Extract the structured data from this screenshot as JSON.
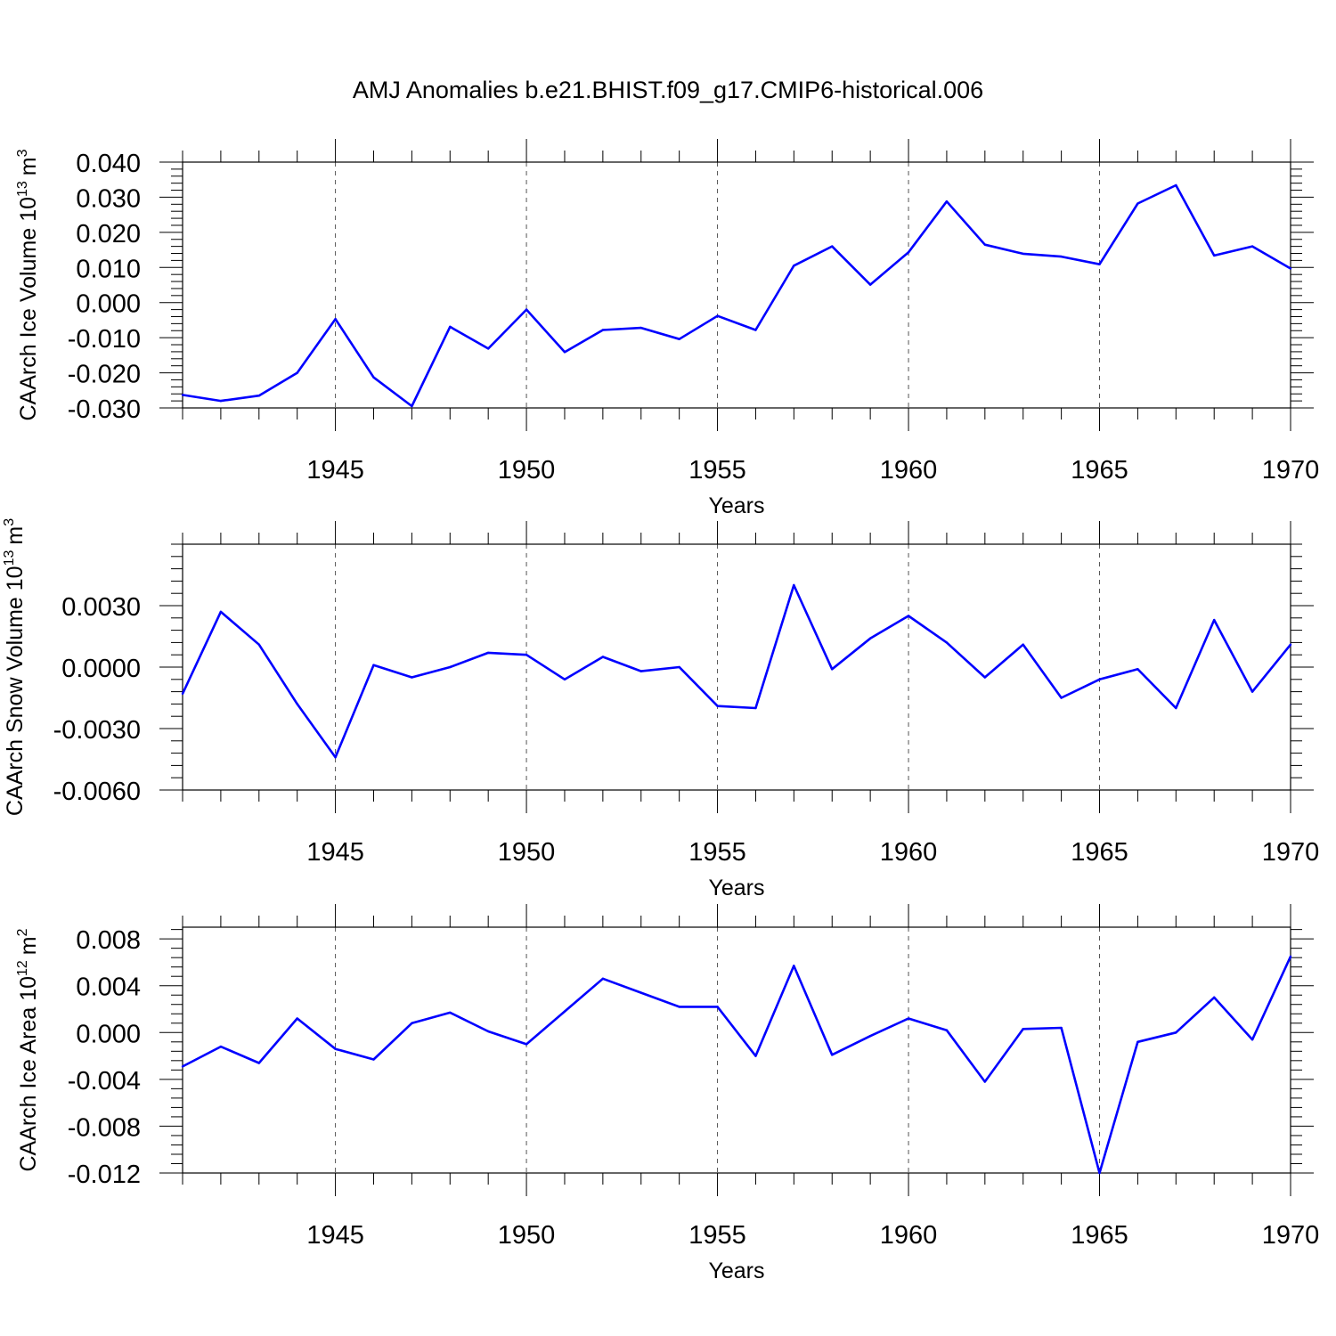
{
  "title": "AMJ Anomalies b.e21.BHIST.f09_g17.CMIP6-historical.006",
  "colors": {
    "line": "#0000ff",
    "axis": "#000000",
    "grid": "#555555",
    "background": "#ffffff"
  },
  "chart_data": [
    {
      "type": "line",
      "ylabel_main": "CAArch Ice Volume 10",
      "ylabel_exp": "13",
      "ylabel_unit": "m",
      "ylabel_unit_exp": "3",
      "xlabel": "Years",
      "xlim": [
        1941,
        1970
      ],
      "ylim": [
        -0.03,
        0.04
      ],
      "yticks": [
        -0.03,
        -0.02,
        -0.01,
        0.0,
        0.01,
        0.02,
        0.03,
        0.04
      ],
      "ytick_labels": [
        "-0.030",
        "-0.020",
        "-0.010",
        "0.000",
        "0.010",
        "0.020",
        "0.030",
        "0.040"
      ],
      "xticks": [
        1945,
        1950,
        1955,
        1960,
        1965,
        1970
      ],
      "xtick_labels": [
        "1945",
        "1950",
        "1955",
        "1960",
        "1965",
        "1970"
      ],
      "x": [
        1941,
        1942,
        1943,
        1944,
        1945,
        1946,
        1947,
        1948,
        1949,
        1950,
        1951,
        1952,
        1953,
        1954,
        1955,
        1956,
        1957,
        1958,
        1959,
        1960,
        1961,
        1962,
        1963,
        1964,
        1965,
        1966,
        1967,
        1968,
        1969,
        1970
      ],
      "values": [
        -0.0263,
        -0.028,
        -0.0265,
        -0.02,
        -0.0047,
        -0.0213,
        -0.0295,
        -0.0069,
        -0.0131,
        -0.002,
        -0.0141,
        -0.0078,
        -0.0072,
        -0.0104,
        -0.0038,
        -0.0078,
        0.0105,
        0.016,
        0.0051,
        0.0143,
        0.0288,
        0.0165,
        0.0139,
        0.0131,
        0.0109,
        0.0282,
        0.0334,
        0.0134,
        0.016,
        0.0097
      ]
    },
    {
      "type": "line",
      "ylabel_main": "CAArch Snow Volume 10",
      "ylabel_exp": "13",
      "ylabel_unit": "m",
      "ylabel_unit_exp": "3",
      "xlabel": "Years",
      "xlim": [
        1941,
        1970
      ],
      "ylim": [
        -0.006,
        0.006
      ],
      "yticks": [
        -0.006,
        -0.003,
        0.0,
        0.003
      ],
      "ytick_labels": [
        "-0.0060",
        "-0.0030",
        "0.0000",
        "0.0030"
      ],
      "xticks": [
        1945,
        1950,
        1955,
        1960,
        1965,
        1970
      ],
      "xtick_labels": [
        "1945",
        "1950",
        "1955",
        "1960",
        "1965",
        "1970"
      ],
      "x": [
        1941,
        1942,
        1943,
        1944,
        1945,
        1946,
        1947,
        1948,
        1949,
        1950,
        1951,
        1952,
        1953,
        1954,
        1955,
        1956,
        1957,
        1958,
        1959,
        1960,
        1961,
        1962,
        1963,
        1964,
        1965,
        1966,
        1967,
        1968,
        1969,
        1970
      ],
      "values": [
        -0.0013,
        0.0027,
        0.0011,
        -0.0018,
        -0.0044,
        0.0001,
        -0.0005,
        -0.0,
        0.0007,
        0.0006,
        -0.0006,
        0.0005,
        -0.0002,
        -0.0,
        -0.0019,
        -0.002,
        0.004,
        -0.0001,
        0.0014,
        0.0025,
        0.0012,
        -0.0005,
        0.0011,
        -0.0015,
        -0.0006,
        -0.0001,
        -0.002,
        0.0023,
        -0.0012,
        0.0011
      ]
    },
    {
      "type": "line",
      "ylabel_main": "CAArch Ice Area 10",
      "ylabel_exp": "12",
      "ylabel_unit": "m",
      "ylabel_unit_exp": "2",
      "xlabel": "Years",
      "xlim": [
        1941,
        1970
      ],
      "ylim": [
        -0.012,
        0.009
      ],
      "yticks": [
        -0.012,
        -0.008,
        -0.004,
        0.0,
        0.004,
        0.008
      ],
      "ytick_labels": [
        "-0.012",
        "-0.008",
        "-0.004",
        "0.000",
        "0.004",
        "0.008"
      ],
      "xticks": [
        1945,
        1950,
        1955,
        1960,
        1965,
        1970
      ],
      "xtick_labels": [
        "1945",
        "1950",
        "1955",
        "1960",
        "1965",
        "1970"
      ],
      "x": [
        1941,
        1942,
        1943,
        1944,
        1945,
        1946,
        1947,
        1948,
        1949,
        1950,
        1951,
        1952,
        1953,
        1954,
        1955,
        1956,
        1957,
        1958,
        1959,
        1960,
        1961,
        1962,
        1963,
        1964,
        1965,
        1966,
        1967,
        1968,
        1969,
        1970
      ],
      "values": [
        -0.0029,
        -0.0012,
        -0.0026,
        0.0012,
        -0.0014,
        -0.0023,
        0.0008,
        0.0017,
        0.0001,
        -0.001,
        0.0018,
        0.0046,
        0.0034,
        0.0022,
        0.0022,
        -0.002,
        0.0057,
        -0.0019,
        -0.0003,
        0.0012,
        0.0002,
        -0.0042,
        0.0003,
        0.0004,
        -0.012,
        -0.0008,
        0.0,
        0.003,
        -0.0006,
        0.0065
      ]
    }
  ]
}
